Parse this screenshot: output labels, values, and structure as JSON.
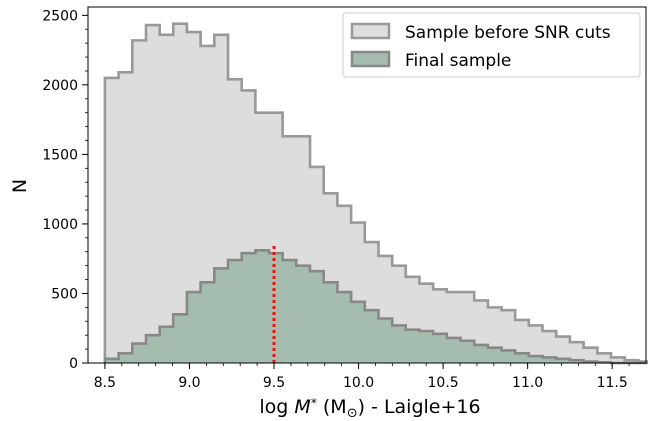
{
  "chart_data": {
    "type": "step-histogram",
    "xlabel": "log M* (M⊙) - Laigle+16",
    "xlabel_parts": {
      "prefix": "log ",
      "var": "M",
      "sub": "*",
      "paren_open": " (M",
      "odot": "⊙",
      "paren_close": ") - Laigle+16"
    },
    "ylabel": "N",
    "xlim": [
      8.4,
      11.7
    ],
    "ylim": [
      0,
      2560
    ],
    "xticks": [
      8.5,
      9.0,
      9.5,
      10.0,
      10.5,
      11.0,
      11.5
    ],
    "xtick_labels": [
      "8.5",
      "9.0",
      "9.5",
      "10.0",
      "10.5",
      "11.0",
      "11.5"
    ],
    "yticks": [
      0,
      500,
      1000,
      1500,
      2000,
      2500
    ],
    "ytick_labels": [
      "0",
      "500",
      "1000",
      "1500",
      "2000",
      "2500"
    ],
    "bin_edges": [
      8.5,
      8.581,
      8.662,
      8.743,
      8.824,
      8.904,
      8.985,
      9.066,
      9.147,
      9.228,
      9.309,
      9.39,
      9.471,
      9.551,
      9.632,
      9.713,
      9.794,
      9.875,
      9.956,
      10.037,
      10.118,
      10.199,
      10.279,
      10.36,
      10.441,
      10.522,
      10.603,
      10.684,
      10.765,
      10.846,
      10.926,
      11.007,
      11.088,
      11.169,
      11.25,
      11.331,
      11.412,
      11.493,
      11.574,
      11.655,
      11.735
    ],
    "series": [
      {
        "name": "Sample before SNR cuts",
        "fill": "#dddddd",
        "edge": "#999999",
        "values": [
          2050,
          2090,
          2320,
          2430,
          2360,
          2440,
          2380,
          2280,
          2360,
          2040,
          1960,
          1800,
          1800,
          1630,
          1630,
          1410,
          1220,
          1130,
          1010,
          870,
          770,
          700,
          620,
          570,
          530,
          510,
          510,
          450,
          400,
          380,
          310,
          270,
          230,
          190,
          150,
          110,
          70,
          40,
          20,
          10
        ]
      },
      {
        "name": "Final sample",
        "fill": "#a5bdaf",
        "edge": "#888888",
        "values": [
          30,
          70,
          140,
          200,
          260,
          350,
          510,
          580,
          680,
          740,
          790,
          810,
          790,
          740,
          700,
          660,
          580,
          510,
          440,
          380,
          320,
          270,
          240,
          230,
          210,
          180,
          160,
          130,
          110,
          90,
          70,
          50,
          40,
          30,
          20,
          10,
          5,
          0,
          0,
          0
        ]
      }
    ],
    "annotation": {
      "type": "vertical-dotted-line",
      "x": 9.5,
      "y_top": 860,
      "color": "#ee1111"
    },
    "legend_position": "top-right",
    "grid": false
  }
}
